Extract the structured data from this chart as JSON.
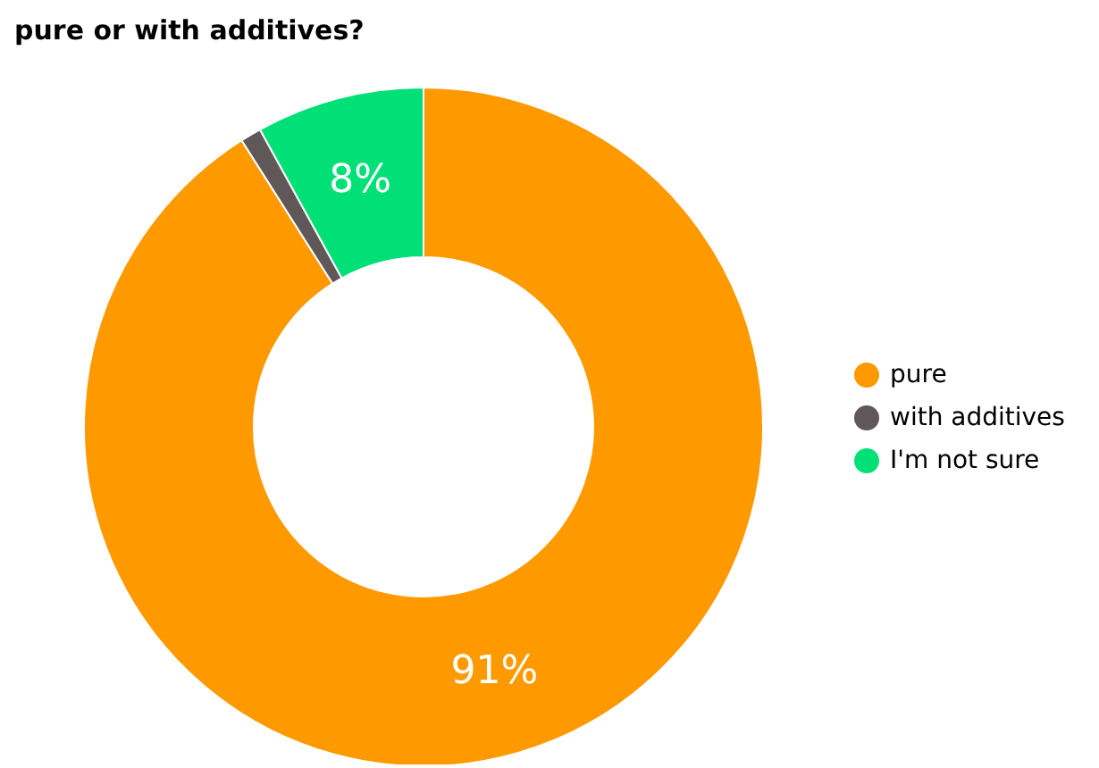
{
  "chart_data": {
    "type": "donut",
    "title": "pure or with additives?",
    "categories": [
      "pure",
      "with additives",
      "I'm not sure"
    ],
    "values": [
      91,
      1,
      8
    ],
    "colors": [
      "#ff9900",
      "#5f5758",
      "#00e077"
    ],
    "value_labels": [
      "91%",
      null,
      "8%"
    ],
    "legend": "right"
  }
}
